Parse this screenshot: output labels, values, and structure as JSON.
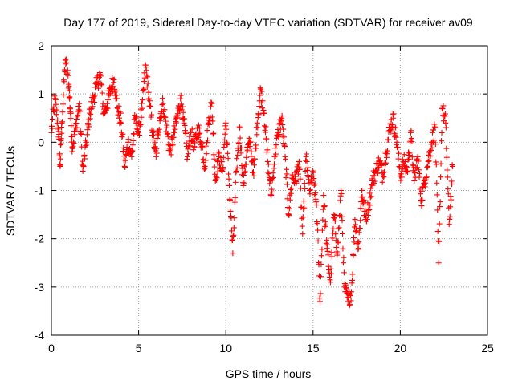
{
  "chart_data": {
    "type": "scatter",
    "title": "Day 177 of 2019, Sidereal Day-to-day VTEC variation (SDTVAR) for receiver av09",
    "xlabel": "GPS time / hours",
    "ylabel": "SDTVAR / TECUs",
    "xlim": [
      0,
      25
    ],
    "ylim": [
      -4,
      2
    ],
    "xticks": [
      0,
      5,
      10,
      15,
      20,
      25
    ],
    "yticks": [
      -4,
      -3,
      -2,
      -1,
      0,
      1,
      2
    ],
    "grid": true,
    "marker": "+",
    "series": [
      {
        "name": "SDTVAR",
        "color": "#ff0000",
        "x": [
          0.0,
          0.2,
          0.4,
          0.5,
          0.6,
          0.8,
          1.0,
          1.1,
          1.2,
          1.4,
          1.6,
          1.8,
          2.0,
          2.2,
          2.4,
          2.6,
          2.8,
          3.0,
          3.2,
          3.4,
          3.6,
          3.8,
          4.0,
          4.2,
          4.4,
          4.6,
          4.8,
          5.0,
          5.2,
          5.4,
          5.6,
          5.8,
          6.0,
          6.2,
          6.4,
          6.6,
          6.8,
          7.0,
          7.2,
          7.4,
          7.6,
          7.8,
          8.0,
          8.2,
          8.4,
          8.6,
          8.8,
          9.0,
          9.2,
          9.4,
          9.6,
          9.8,
          10.0,
          10.2,
          10.4,
          10.6,
          10.8,
          11.0,
          11.2,
          11.4,
          11.6,
          11.8,
          12.0,
          12.2,
          12.4,
          12.6,
          12.8,
          13.0,
          13.2,
          13.4,
          13.6,
          13.8,
          14.0,
          14.2,
          14.4,
          14.6,
          14.8,
          15.0,
          15.2,
          15.4,
          15.6,
          15.8,
          16.0,
          16.2,
          16.4,
          16.6,
          16.8,
          17.0,
          17.2,
          17.4,
          17.6,
          17.8,
          18.0,
          18.2,
          18.4,
          18.6,
          18.8,
          19.0,
          19.2,
          19.4,
          19.6,
          19.8,
          20.0,
          20.2,
          20.4,
          20.6,
          20.8,
          21.0,
          21.2,
          21.4,
          21.6,
          21.8,
          22.0,
          22.2,
          22.4,
          22.6,
          22.8,
          23.0
        ],
        "y": [
          0.2,
          0.9,
          0.3,
          -0.5,
          0.4,
          1.7,
          1.2,
          0.6,
          -0.1,
          0.3,
          0.8,
          -0.6,
          0.0,
          0.6,
          0.9,
          1.2,
          1.4,
          0.6,
          0.8,
          1.1,
          1.3,
          0.7,
          0.4,
          -0.5,
          0.0,
          -0.3,
          0.5,
          0.2,
          0.7,
          1.6,
          0.9,
          0.2,
          -0.3,
          0.5,
          0.8,
          0.3,
          -0.2,
          0.1,
          0.5,
          0.9,
          0.4,
          -0.3,
          0.2,
          -0.1,
          0.3,
          0.0,
          -0.5,
          0.4,
          0.8,
          -0.8,
          -0.3,
          -0.6,
          0.4,
          -0.9,
          -2.3,
          -0.6,
          0.3,
          -0.9,
          -0.2,
          0.0,
          -0.7,
          0.4,
          1.1,
          0.6,
          -0.4,
          -1.1,
          -0.3,
          0.2,
          0.5,
          -0.3,
          -1.5,
          -0.7,
          -0.8,
          -0.4,
          -1.9,
          -0.3,
          -1.0,
          -0.7,
          -1.3,
          -3.3,
          -1.1,
          -2.2,
          -2.9,
          -1.5,
          -2.3,
          -1.0,
          -3.0,
          -3.3,
          -3.1,
          -1.6,
          -2.2,
          -1.0,
          -1.6,
          -1.3,
          -0.8,
          -0.6,
          -0.4,
          -0.7,
          -0.2,
          0.3,
          0.5,
          0.0,
          -0.7,
          -0.4,
          -0.6,
          0.2,
          -0.8,
          -0.3,
          -1.2,
          -0.8,
          -0.4,
          0.0,
          0.3,
          -2.5,
          0.7,
          0.4,
          -1.7,
          -0.5
        ]
      }
    ]
  }
}
